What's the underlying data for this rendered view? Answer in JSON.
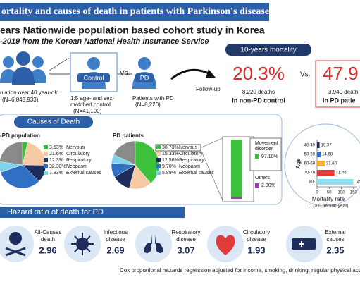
{
  "banner": "ortality and causes of death in patients with Parkinson's disease",
  "title": "ears Nationwide population based cohort study in Korea",
  "subtitle": "-2019 from the Korean National Health Insurance Service",
  "cohort": {
    "population_label": "ulation over 40 year-old",
    "population_n": "(N=6,843,933)",
    "control_badge": "Control",
    "vs": "Vs.",
    "pd_badge": "PD",
    "control_label": [
      "1:5 age- and sex-",
      "matched control"
    ],
    "control_n": "(N=41,100)",
    "pd_label": "Patients with PD",
    "pd_n": "(N=8,220)",
    "follow_up": "Follow-up"
  },
  "mortality": {
    "title": "10-years mortality",
    "control_rate": "20.3%",
    "control_deaths": "8,220 deaths",
    "control_group": "in non-PD control",
    "vs": "Vs.",
    "pd_rate": "47.9",
    "pd_deaths": "3,940 death",
    "pd_group": "in PD patie"
  },
  "causes": {
    "title": "Causes of Death",
    "pies": [
      {
        "name": "-PD population",
        "slices": [
          {
            "label": "Nervous",
            "value": 3.63,
            "value_label": "3.63%",
            "color": "#3cc13b"
          },
          {
            "label": "Circulatory",
            "value": 21.6,
            "value_label": "21.6%",
            "color": "#f6c9a3"
          },
          {
            "label": "Respiratory",
            "value": 12.3,
            "value_label": "12.3%",
            "color": "#1f2d5c"
          },
          {
            "label": "Neopasm",
            "value": 32.38,
            "value_label": "32.38%",
            "color": "#2f6fc4"
          },
          {
            "label": "External causes",
            "value": 7.33,
            "value_label": "7.33%",
            "color": "#7fd3ea"
          }
        ]
      },
      {
        "name": "PD patients",
        "slices": [
          {
            "label": "Nervous",
            "value": 38.73,
            "value_label": "38.73%",
            "color": "#3cc13b"
          },
          {
            "label": "Circulatory",
            "value": 15.33,
            "value_label": "15.33%",
            "color": "#f6c9a3"
          },
          {
            "label": "Respiratory",
            "value": 12.56,
            "value_label": "12.56%",
            "color": "#1f2d5c"
          },
          {
            "label": "Neopasm",
            "value": 9.7,
            "value_label": "9.70%",
            "color": "#2f6fc4"
          },
          {
            "label": "External causes",
            "value": 5.89,
            "value_label": "5.89%",
            "color": "#7fd3ea"
          }
        ]
      }
    ],
    "breakdown": [
      {
        "name": [
          "Movement",
          "disorder"
        ],
        "value": 97.1,
        "value_label": "97.10%",
        "color": "#3cc13b"
      },
      {
        "name": [
          "Others"
        ],
        "value": 2.9,
        "value_label": "2.90%",
        "color": "#9b3fb5"
      }
    ]
  },
  "age_chart": {
    "type": "bar",
    "ylabel": "Age",
    "xlabel": "Mortality rate",
    "xlabel_sub": "(1,000 person-year)",
    "categories": [
      "40-49",
      "50-59",
      "60-69",
      "70-79",
      "80-"
    ],
    "values": [
      10.37,
      14.68,
      31.6,
      71.46,
      149
    ],
    "value_labels": [
      "10.37",
      "14.68",
      "31.60",
      "71.46",
      "149"
    ],
    "colors": [
      "#1f2d5c",
      "#2f6fc4",
      "#f2b233",
      "#e03a3a",
      "#8fe0f2"
    ],
    "xlim": [
      0,
      165
    ],
    "xticks": [
      0,
      50,
      100,
      150
    ]
  },
  "hazard": {
    "title": "Hazard ratio of death for PD",
    "items": [
      {
        "label": [
          "All-Causes",
          "death"
        ],
        "value": 2.96
      },
      {
        "label": [
          "Infectious",
          "disease"
        ],
        "value": 2.69
      },
      {
        "label": [
          "Respiratory",
          "disease"
        ],
        "value": 3.07
      },
      {
        "label": [
          "Circulatory",
          "disease"
        ],
        "value": 1.93
      },
      {
        "label": [
          "External",
          "causes"
        ],
        "value": 2.35
      }
    ],
    "note": "Cox proportional hazards regression adjusted for income, smoking, drinking, regular physical activity, and co"
  }
}
